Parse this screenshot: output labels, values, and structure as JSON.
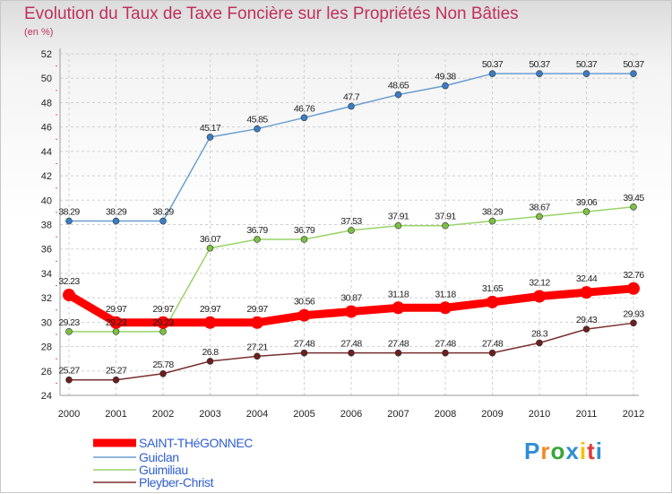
{
  "chart_data": {
    "type": "line",
    "title": "Evolution du Taux de Taxe Foncière sur les Propriétés Non Bâties",
    "subtitle": "(en %)",
    "xlabel": "",
    "ylabel": "",
    "ylim": [
      24,
      52
    ],
    "y_ticks": [
      24,
      26,
      28,
      30,
      32,
      34,
      36,
      38,
      40,
      42,
      44,
      46,
      48,
      50,
      52
    ],
    "x": [
      "2000",
      "2001",
      "2002",
      "2003",
      "2004",
      "2005",
      "2006",
      "2007",
      "2008",
      "2009",
      "2010",
      "2011",
      "2012"
    ],
    "grid": true,
    "legend_position": "bottom-left",
    "series": [
      {
        "name": "SAINT-THéGONNEC",
        "color": "#ff0000",
        "marker_color": "#ff0000",
        "values": [
          32.23,
          29.97,
          29.97,
          29.97,
          29.97,
          30.56,
          30.87,
          31.18,
          31.18,
          31.65,
          32.12,
          32.44,
          32.76
        ],
        "labels": [
          "32.23",
          "29.97",
          "29.97",
          "29.97",
          "29.97",
          "30.56",
          "30.87",
          "31.18",
          "31.18",
          "31.65",
          "32.12",
          "32.44",
          "32.76"
        ]
      },
      {
        "name": "Guiclan",
        "color": "#6a9ed0",
        "marker_color": "#3b7dc4",
        "values": [
          38.29,
          38.29,
          38.29,
          45.17,
          45.85,
          46.76,
          47.7,
          48.65,
          49.38,
          50.37,
          50.37,
          50.37,
          50.37
        ],
        "labels": [
          "38.29",
          "38.29",
          "38.29",
          "45.17",
          "45.85",
          "46.76",
          "47.7",
          "48.65",
          "49.38",
          "50.37",
          "50.37",
          "50.37",
          "50.37"
        ]
      },
      {
        "name": "Guimiliau",
        "color": "#99d466",
        "marker_color": "#7bc043",
        "values": [
          29.23,
          29.23,
          29.23,
          36.07,
          36.79,
          36.79,
          37.53,
          37.91,
          37.91,
          38.29,
          38.67,
          39.06,
          39.45
        ],
        "labels": [
          "29.23",
          "29.23",
          "29.23",
          "36.07",
          "36.79",
          "36.79",
          "37.53",
          "37.91",
          "37.91",
          "38.29",
          "38.67",
          "39.06",
          "39.45"
        ]
      },
      {
        "name": "Pleyber-Christ",
        "color": "#7a2f2f",
        "marker_color": "#6b1f1f",
        "values": [
          25.27,
          25.27,
          25.78,
          26.8,
          27.21,
          27.48,
          27.48,
          27.48,
          27.48,
          27.48,
          28.3,
          29.43,
          29.93
        ],
        "labels": [
          "25.27",
          "25.27",
          "25.78",
          "26.8",
          "27.21",
          "27.48",
          "27.48",
          "27.48",
          "27.48",
          "27.48",
          "28.3",
          "29.43",
          "29.93"
        ]
      }
    ]
  },
  "logo": {
    "text": "Proxiti",
    "colors": [
      "#2f8fd3",
      "#f08a24",
      "#37a635",
      "#2f8fd3",
      "#f5c000",
      "#e03a3a",
      "#2f8fd3"
    ]
  }
}
